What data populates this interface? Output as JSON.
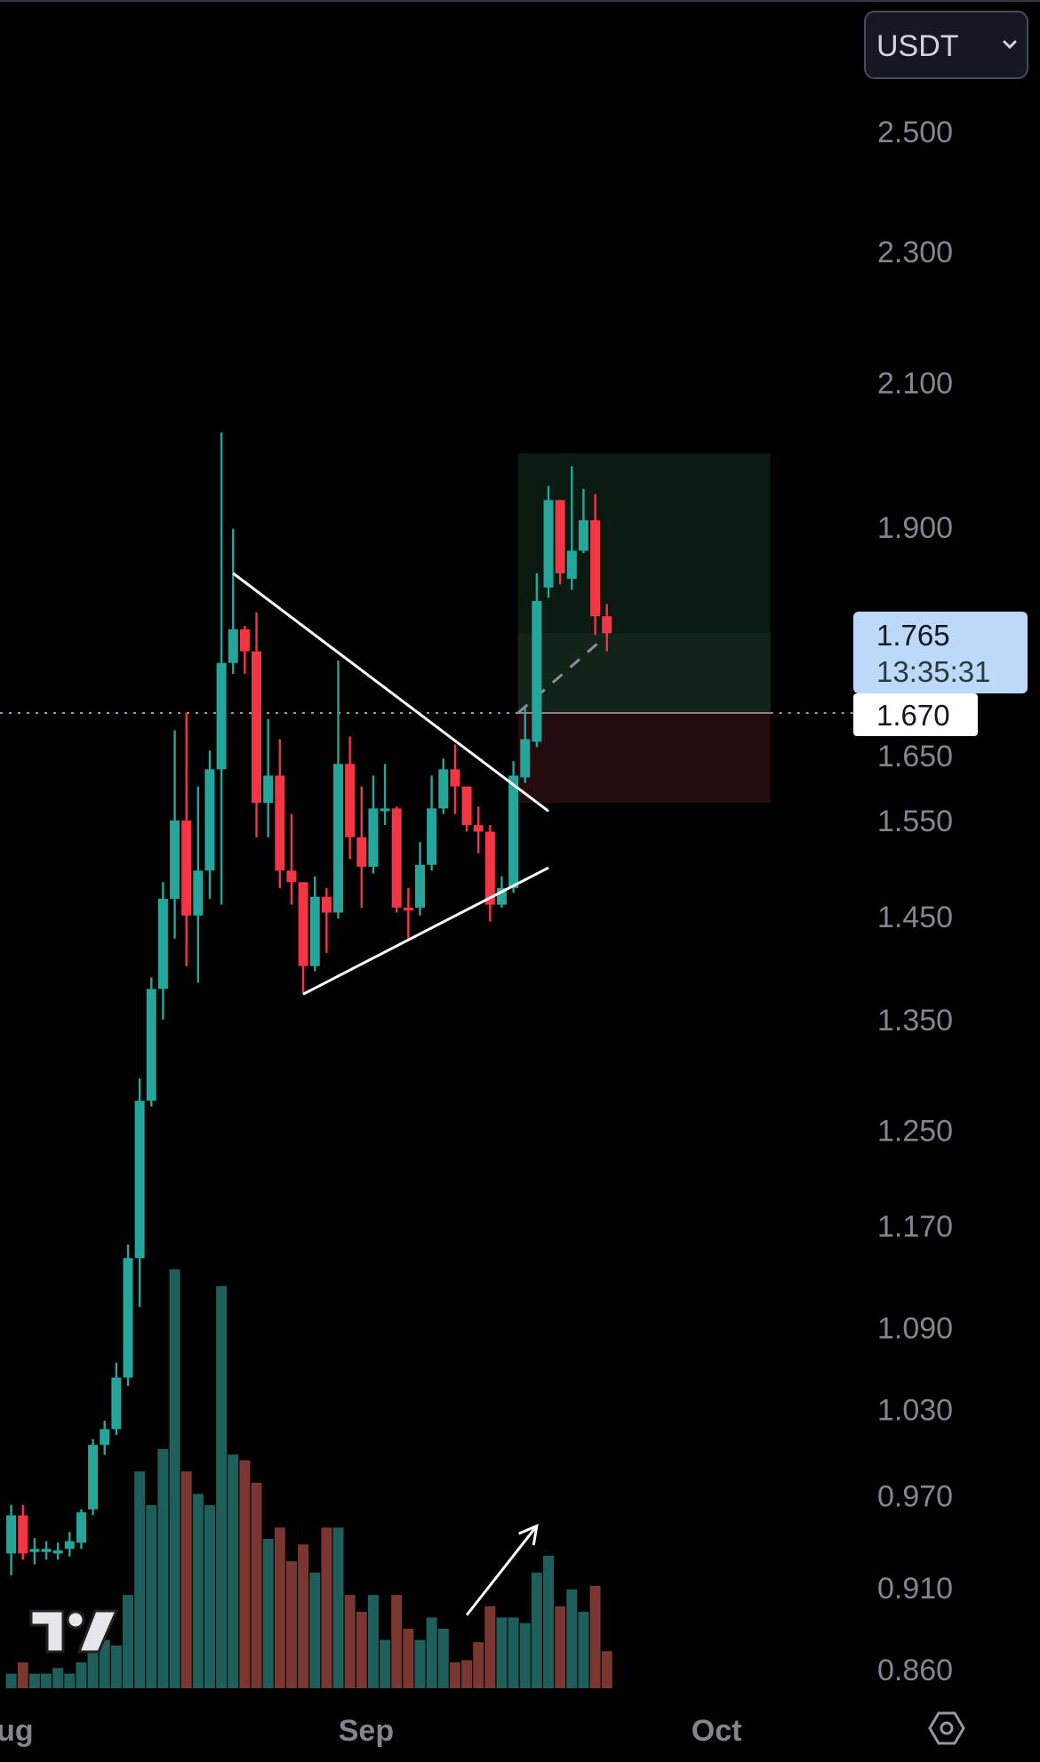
{
  "header": {
    "currency_label": "USDT",
    "currency_icon": "chevron-down-icon"
  },
  "price_label": {
    "price": "1.765",
    "countdown": "13:35:31",
    "bg_color": "#bcd9fa"
  },
  "entry_label": {
    "price": "1.670"
  },
  "colors": {
    "up": "#26a69a",
    "down": "#f23645",
    "up_volume": "#1f5f5b",
    "down_volume": "#7a3630",
    "axis_text": "#83868f",
    "target_zone": "#0b1a10",
    "target_zone_active": "#12241a",
    "stop_zone": "#240b0e"
  },
  "chart_data": {
    "type": "candlestick",
    "y_scale": "log",
    "ylim": [
      0.84,
      2.6
    ],
    "grid": false,
    "y_ticks": [
      "2.500",
      "2.300",
      "2.100",
      "1.900",
      "1.650",
      "1.550",
      "1.450",
      "1.350",
      "1.250",
      "1.170",
      "1.090",
      "1.030",
      "0.970",
      "0.910",
      "0.860"
    ],
    "x_ticks": [
      {
        "label": "Aug",
        "date": "Aug 1"
      },
      {
        "label": "Sep",
        "date": "Sep 1"
      },
      {
        "label": "Oct",
        "date": "Oct 1"
      }
    ],
    "candles": [
      {
        "d": "Aug 1",
        "o": 0.932,
        "h": 0.964,
        "l": 0.918,
        "c": 0.957,
        "v": 13
      },
      {
        "d": "Aug 2",
        "o": 0.957,
        "h": 0.964,
        "l": 0.928,
        "c": 0.932,
        "v": 23
      },
      {
        "d": "Aug 3",
        "o": 0.933,
        "h": 0.942,
        "l": 0.925,
        "c": 0.935,
        "v": 13
      },
      {
        "d": "Aug 4",
        "o": 0.933,
        "h": 0.94,
        "l": 0.928,
        "c": 0.935,
        "v": 13
      },
      {
        "d": "Aug 5",
        "o": 0.932,
        "h": 0.939,
        "l": 0.928,
        "c": 0.934,
        "v": 18
      },
      {
        "d": "Aug 6",
        "o": 0.935,
        "h": 0.946,
        "l": 0.93,
        "c": 0.94,
        "v": 13
      },
      {
        "d": "Aug 7",
        "o": 0.939,
        "h": 0.961,
        "l": 0.935,
        "c": 0.959,
        "v": 23
      },
      {
        "d": "Aug 8",
        "o": 0.961,
        "h": 1.009,
        "l": 0.957,
        "c": 1.005,
        "v": 33
      },
      {
        "d": "Aug 9",
        "o": 1.005,
        "h": 1.022,
        "l": 0.998,
        "c": 1.016,
        "v": 43
      },
      {
        "d": "Aug 10",
        "o": 1.016,
        "h": 1.064,
        "l": 1.012,
        "c": 1.053,
        "v": 38
      },
      {
        "d": "Aug 11",
        "o": 1.053,
        "h": 1.155,
        "l": 1.047,
        "c": 1.144,
        "v": 83
      },
      {
        "d": "Aug 12",
        "o": 1.144,
        "h": 1.296,
        "l": 1.106,
        "c": 1.276,
        "v": 193
      },
      {
        "d": "Aug 13",
        "o": 1.276,
        "h": 1.39,
        "l": 1.271,
        "c": 1.379,
        "v": 163
      },
      {
        "d": "Aug 14",
        "o": 1.379,
        "h": 1.485,
        "l": 1.35,
        "c": 1.468,
        "v": 213
      },
      {
        "d": "Aug 15",
        "o": 1.468,
        "h": 1.65,
        "l": 1.428,
        "c": 1.55,
        "v": 373
      },
      {
        "d": "Aug 16",
        "o": 1.55,
        "h": 1.67,
        "l": 1.401,
        "c": 1.451,
        "v": 193
      },
      {
        "d": "Aug 17",
        "o": 1.451,
        "h": 1.587,
        "l": 1.385,
        "c": 1.497,
        "v": 173
      },
      {
        "d": "Aug 18",
        "o": 1.497,
        "h": 1.627,
        "l": 1.468,
        "c": 1.606,
        "v": 163
      },
      {
        "d": "Aug 19",
        "o": 1.606,
        "h": 2.029,
        "l": 1.462,
        "c": 1.729,
        "v": 358
      },
      {
        "d": "Aug 20",
        "o": 1.729,
        "h": 1.898,
        "l": 1.716,
        "c": 1.77,
        "v": 208
      },
      {
        "d": "Aug 21",
        "o": 1.77,
        "h": 1.774,
        "l": 1.716,
        "c": 1.743,
        "v": 203
      },
      {
        "d": "Aug 22",
        "o": 1.743,
        "h": 1.791,
        "l": 1.532,
        "c": 1.569,
        "v": 183
      },
      {
        "d": "Aug 23",
        "o": 1.569,
        "h": 1.663,
        "l": 1.532,
        "c": 1.599,
        "v": 133
      },
      {
        "d": "Aug 24",
        "o": 1.599,
        "h": 1.64,
        "l": 1.479,
        "c": 1.497,
        "v": 143
      },
      {
        "d": "Aug 25",
        "o": 1.497,
        "h": 1.557,
        "l": 1.462,
        "c": 1.485,
        "v": 113
      },
      {
        "d": "Aug 26",
        "o": 1.485,
        "h": 1.485,
        "l": 1.374,
        "c": 1.401,
        "v": 128
      },
      {
        "d": "Aug 27",
        "o": 1.401,
        "h": 1.491,
        "l": 1.396,
        "c": 1.47,
        "v": 103
      },
      {
        "d": "Aug 28",
        "o": 1.47,
        "h": 1.479,
        "l": 1.414,
        "c": 1.454,
        "v": 143
      },
      {
        "d": "Aug 29",
        "o": 1.454,
        "h": 1.732,
        "l": 1.448,
        "c": 1.612,
        "v": 143
      },
      {
        "d": "Aug 30",
        "o": 1.612,
        "h": 1.643,
        "l": 1.509,
        "c": 1.532,
        "v": 83
      },
      {
        "d": "Aug 31",
        "o": 1.532,
        "h": 1.587,
        "l": 1.459,
        "c": 1.501,
        "v": 68
      },
      {
        "d": "Sep 1",
        "o": 1.501,
        "h": 1.599,
        "l": 1.494,
        "c": 1.563,
        "v": 83
      },
      {
        "d": "Sep 2",
        "o": 1.56,
        "h": 1.612,
        "l": 1.545,
        "c": 1.563,
        "v": 43
      },
      {
        "d": "Sep 3",
        "o": 1.563,
        "h": 1.565,
        "l": 1.454,
        "c": 1.459,
        "v": 83
      },
      {
        "d": "Sep 4",
        "o": 1.459,
        "h": 1.479,
        "l": 1.428,
        "c": 1.456,
        "v": 53
      },
      {
        "d": "Sep 5",
        "o": 1.459,
        "h": 1.527,
        "l": 1.451,
        "c": 1.503,
        "v": 43
      },
      {
        "d": "Sep 6",
        "o": 1.503,
        "h": 1.599,
        "l": 1.497,
        "c": 1.563,
        "v": 63
      },
      {
        "d": "Sep 7",
        "o": 1.563,
        "h": 1.618,
        "l": 1.557,
        "c": 1.606,
        "v": 53
      },
      {
        "d": "Sep 8",
        "o": 1.606,
        "h": 1.634,
        "l": 1.557,
        "c": 1.587,
        "v": 23
      },
      {
        "d": "Sep 9",
        "o": 1.587,
        "h": 1.587,
        "l": 1.538,
        "c": 1.545,
        "v": 25
      },
      {
        "d": "Sep 10",
        "o": 1.545,
        "h": 1.565,
        "l": 1.515,
        "c": 1.538,
        "v": 41
      },
      {
        "d": "Sep 11",
        "o": 1.538,
        "h": 1.545,
        "l": 1.445,
        "c": 1.462,
        "v": 73
      },
      {
        "d": "Sep 12",
        "o": 1.462,
        "h": 1.491,
        "l": 1.459,
        "c": 1.479,
        "v": 63
      },
      {
        "d": "Sep 13",
        "o": 1.479,
        "h": 1.615,
        "l": 1.474,
        "c": 1.599,
        "v": 63
      },
      {
        "d": "Sep 14",
        "o": 1.597,
        "h": 1.676,
        "l": 1.591,
        "c": 1.64,
        "v": 58
      },
      {
        "d": "Sep 15",
        "o": 1.637,
        "h": 1.84,
        "l": 1.631,
        "c": 1.805,
        "v": 103
      },
      {
        "d": "Sep 16",
        "o": 1.822,
        "h": 1.955,
        "l": 1.809,
        "c": 1.936,
        "v": 118
      },
      {
        "d": "Sep 17",
        "o": 1.936,
        "h": 1.936,
        "l": 1.826,
        "c": 1.84,
        "v": 73
      },
      {
        "d": "Sep 18",
        "o": 1.833,
        "h": 1.982,
        "l": 1.819,
        "c": 1.869,
        "v": 88
      },
      {
        "d": "Sep 19",
        "o": 1.869,
        "h": 1.951,
        "l": 1.866,
        "c": 1.909,
        "v": 68
      },
      {
        "d": "Sep 20",
        "o": 1.909,
        "h": 1.944,
        "l": 1.763,
        "c": 1.786,
        "v": 91
      },
      {
        "d": "Sep 21",
        "o": 1.786,
        "h": 1.801,
        "l": 1.743,
        "c": 1.765,
        "v": 33
      }
    ],
    "last_price": 1.765,
    "entry_price": 1.67,
    "position": {
      "type": "long",
      "start": "Sep 14",
      "end": "Oct 5",
      "target": 2.0,
      "entry": 1.67,
      "stop": 1.569
    },
    "drawings": [
      {
        "type": "trendline",
        "from": {
          "d": "Aug 20",
          "p": 1.84
        },
        "to": {
          "d": "Sep 16",
          "p": 1.56
        }
      },
      {
        "type": "trendline",
        "from": {
          "d": "Aug 26",
          "p": 1.374
        },
        "to": {
          "d": "Sep 16",
          "p": 1.5
        }
      },
      {
        "type": "arrow",
        "from": {
          "d": "Sep 9",
          "p": 0.893
        },
        "to": {
          "d": "Sep 15",
          "p": 0.95
        }
      }
    ]
  }
}
